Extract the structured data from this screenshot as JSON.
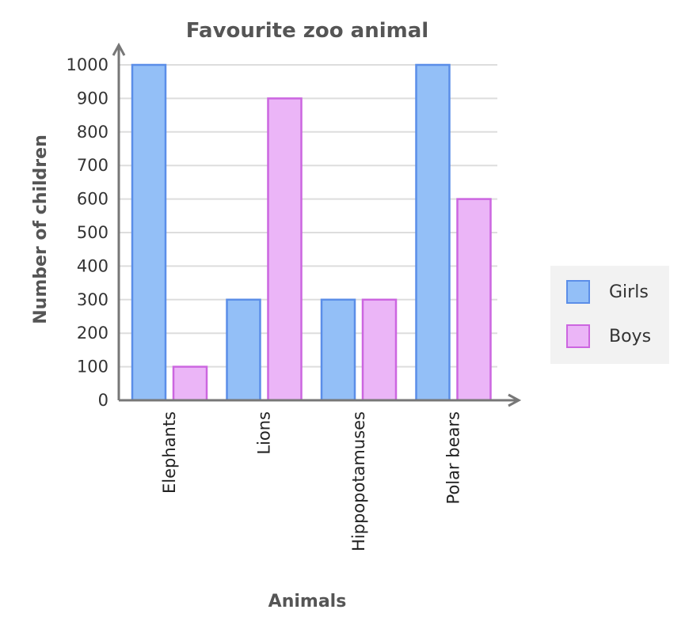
{
  "chart_data": {
    "type": "bar",
    "title": "Favourite zoo animal",
    "xlabel": "Animals",
    "ylabel": "Number of children",
    "categories": [
      "Elephants",
      "Lions",
      "Hippopotamuses",
      "Polar bears"
    ],
    "series": [
      {
        "name": "Girls",
        "values": [
          1000,
          300,
          300,
          1000
        ],
        "fill": "#93bff7",
        "stroke": "#5b8ee8"
      },
      {
        "name": "Boys",
        "values": [
          100,
          900,
          300,
          600
        ],
        "fill": "#ebb5f7",
        "stroke": "#cc66e0"
      }
    ],
    "ylim": [
      0,
      1000
    ],
    "yticks": [
      0,
      100,
      200,
      300,
      400,
      500,
      600,
      700,
      800,
      900,
      1000
    ],
    "grid": true,
    "legend_position": "right",
    "colors": {
      "axis": "#777777",
      "grid": "#dddddd",
      "legend_bg": "#f2f2f2"
    }
  }
}
